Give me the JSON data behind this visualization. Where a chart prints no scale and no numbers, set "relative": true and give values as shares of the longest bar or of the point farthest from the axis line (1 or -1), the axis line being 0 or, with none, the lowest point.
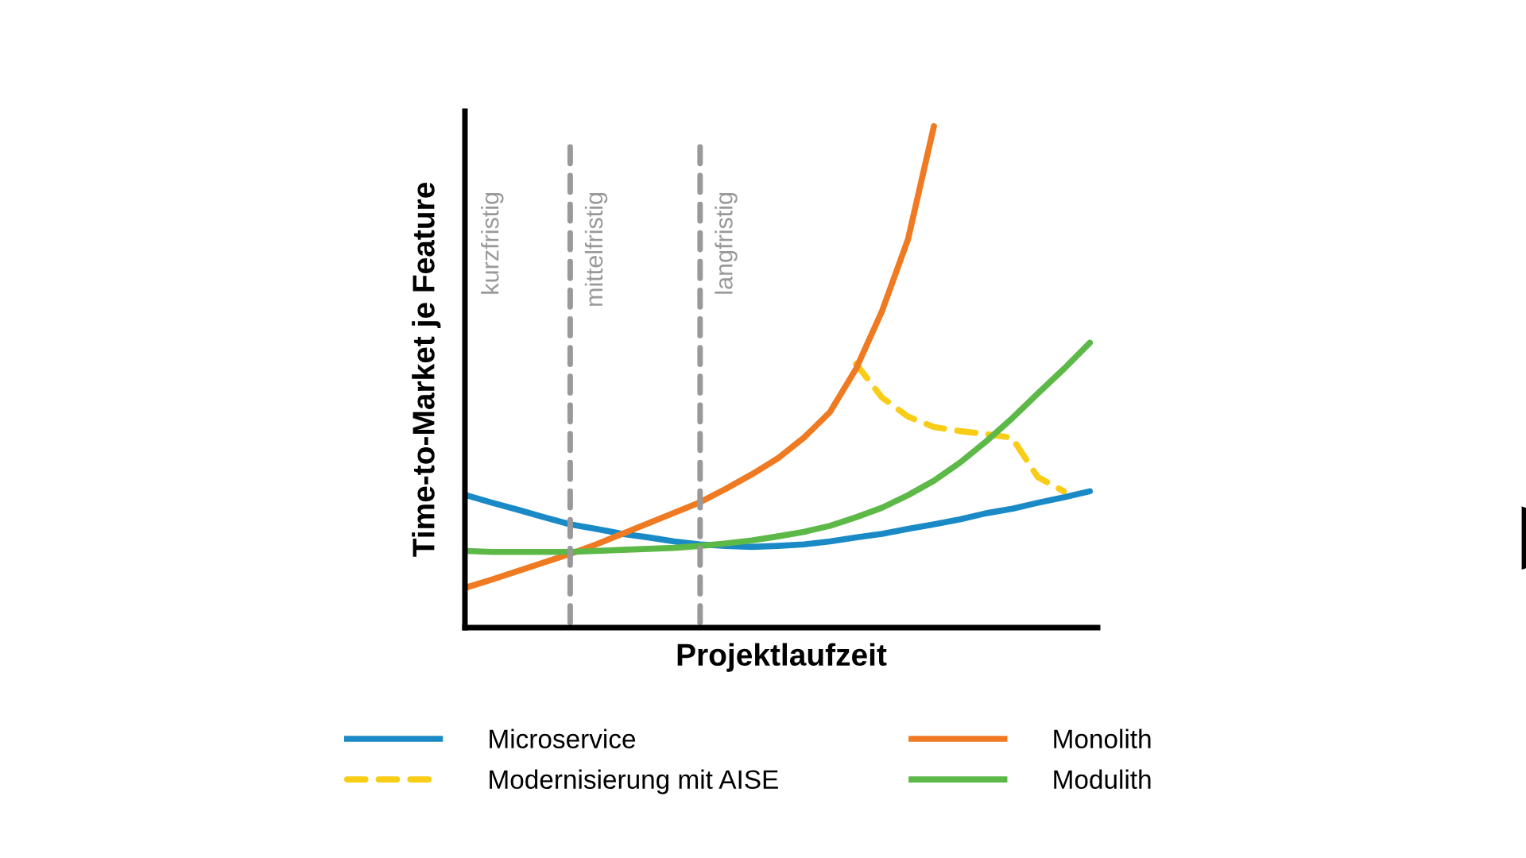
{
  "chart_data": {
    "type": "line",
    "relative": true,
    "xlabel": "Projektlaufzeit",
    "ylabel": "Time-to-Market je Feature",
    "categories": [
      null,
      null,
      null,
      null,
      null,
      null,
      null,
      null,
      null,
      null,
      null,
      null,
      null,
      null,
      null,
      null,
      null,
      null,
      null,
      null,
      null,
      null,
      null,
      null,
      null
    ],
    "series": [
      {
        "name": "Microservice",
        "color": "#1a8ac6",
        "values": [
          0.264,
          0.249,
          0.235,
          0.22,
          0.206,
          0.197,
          0.187,
          0.18,
          0.172,
          0.166,
          0.163,
          0.161,
          0.163,
          0.166,
          0.172,
          0.18,
          0.187,
          0.197,
          0.206,
          0.216,
          0.228,
          0.237,
          0.249,
          0.26,
          0.272
        ]
      },
      {
        "name": "Modernisierung mit AISE",
        "color": "#f9cc15",
        "line_style": "dashed",
        "values": [
          null,
          null,
          null,
          null,
          null,
          null,
          null,
          null,
          null,
          null,
          null,
          null,
          null,
          null,
          null,
          0.526,
          0.459,
          0.421,
          0.4,
          0.392,
          0.386,
          0.379,
          0.3,
          0.272,
          null
        ]
      },
      {
        "name": "Monolith",
        "color": "#f07a22",
        "values": [
          0.08,
          0.096,
          0.113,
          0.13,
          0.147,
          0.166,
          0.187,
          0.208,
          0.229,
          0.25,
          0.277,
          0.306,
          0.338,
          0.379,
          0.43,
          0.516,
          0.631,
          0.774,
          1.0,
          null,
          null,
          null,
          null,
          null,
          null
        ]
      },
      {
        "name": "Modulith",
        "color": "#5db947",
        "values": [
          0.153,
          0.151,
          0.151,
          0.151,
          0.151,
          0.153,
          0.155,
          0.157,
          0.159,
          0.163,
          0.168,
          0.174,
          0.182,
          0.191,
          0.203,
          0.22,
          0.239,
          0.264,
          0.293,
          0.329,
          0.371,
          0.417,
          0.467,
          0.516,
          0.568
        ]
      }
    ],
    "annotations": [
      "kurzfristig",
      "mittelfristig",
      "langfristig"
    ],
    "legend": "bottom",
    "tick_labels": false
  }
}
